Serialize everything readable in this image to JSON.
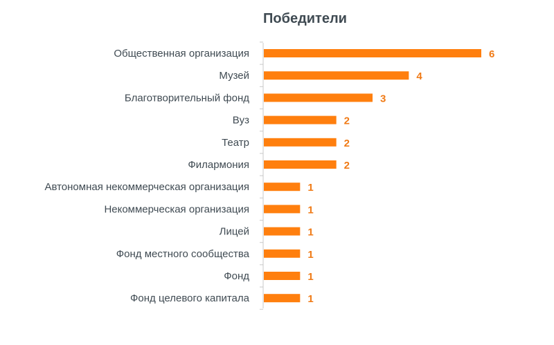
{
  "chart_data": {
    "type": "bar",
    "orientation": "horizontal",
    "title": "Победители",
    "categories": [
      "Общественная организация",
      "Музей",
      "Благотворительный фонд",
      "Вуз",
      "Театр",
      "Филармония",
      "Автономная некоммерческая организация",
      "Некоммерческая организация",
      "Лицей",
      "Фонд местного сообщества",
      "Фонд",
      "Фонд целевого капитала"
    ],
    "values": [
      6,
      4,
      3,
      2,
      2,
      2,
      1,
      1,
      1,
      1,
      1,
      1
    ],
    "data_labels": [
      "6",
      "4",
      "3",
      "2",
      "2",
      "2",
      "1",
      "1",
      "1",
      "1",
      "1",
      "1"
    ],
    "xlim": [
      0,
      6
    ],
    "grid": false,
    "legend": "none"
  },
  "colors": {
    "bar": "#ff7f0e",
    "value_label": "#f07a15",
    "category_label": "#3f4a52",
    "title": "#3f4a52",
    "axis": "#c8c8c8"
  }
}
